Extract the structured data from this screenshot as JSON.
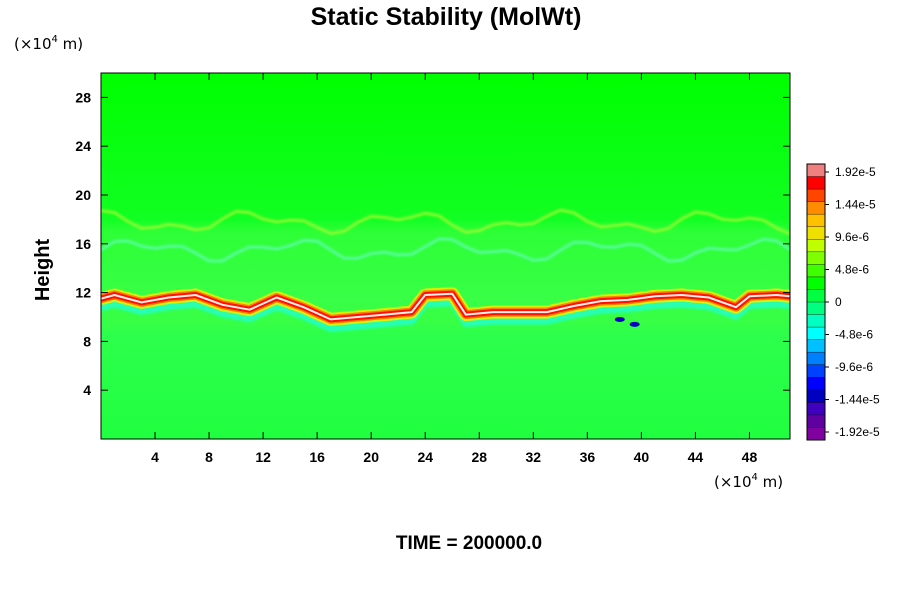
{
  "chart_data": {
    "type": "heatmap",
    "title": "Static Stability (MolWt)",
    "ylabel": "Height",
    "xlabel": "",
    "y_unit": {
      "prefix": "(×10",
      "exponent": "4",
      "suffix": " m)"
    },
    "x_unit": {
      "prefix": "(×10",
      "exponent": "4",
      "suffix": " m)"
    },
    "xlim": [
      0,
      51
    ],
    "ylim": [
      0,
      30
    ],
    "x_ticks": [
      "4",
      "8",
      "12",
      "16",
      "20",
      "24",
      "28",
      "32",
      "36",
      "40",
      "44",
      "48"
    ],
    "y_ticks": [
      "4",
      "8",
      "12",
      "16",
      "20",
      "24",
      "28"
    ],
    "colorbar": {
      "range": [
        -1.92e-05,
        1.92e-05
      ],
      "labels": [
        "1.92e-5",
        "1.44e-5",
        "9.6e-6",
        "4.8e-6",
        "0",
        "-4.8e-6",
        "-9.6e-6",
        "-1.44e-5",
        "-1.92e-5"
      ],
      "colors": [
        "#f08080",
        "#ff0000",
        "#ff4500",
        "#ff8c00",
        "#ffc000",
        "#f0e000",
        "#c0ff00",
        "#80ff00",
        "#40ff00",
        "#00ff00",
        "#00ff40",
        "#00ff80",
        "#00ffc0",
        "#00ffff",
        "#00c0ff",
        "#0080ff",
        "#0040ff",
        "#0000ff",
        "#0000c0",
        "#4000c0",
        "#6000a0",
        "#8000a0"
      ]
    },
    "tropopause_band": {
      "x": [
        0,
        1,
        3,
        5,
        7,
        9,
        11,
        13,
        15,
        17,
        19,
        21,
        23,
        24,
        26,
        27,
        29,
        31,
        33,
        35,
        37,
        39,
        41,
        43,
        45,
        47,
        48,
        50,
        51
      ],
      "y": [
        11.5,
        11.8,
        11.2,
        11.6,
        11.8,
        11.0,
        10.6,
        11.6,
        10.8,
        9.8,
        10.0,
        10.2,
        10.4,
        11.8,
        11.9,
        10.2,
        10.4,
        10.4,
        10.4,
        10.9,
        11.3,
        11.4,
        11.7,
        11.8,
        11.6,
        10.8,
        11.7,
        11.8,
        11.7
      ]
    }
  },
  "footer": {
    "label": "TIME = 200000.0"
  }
}
